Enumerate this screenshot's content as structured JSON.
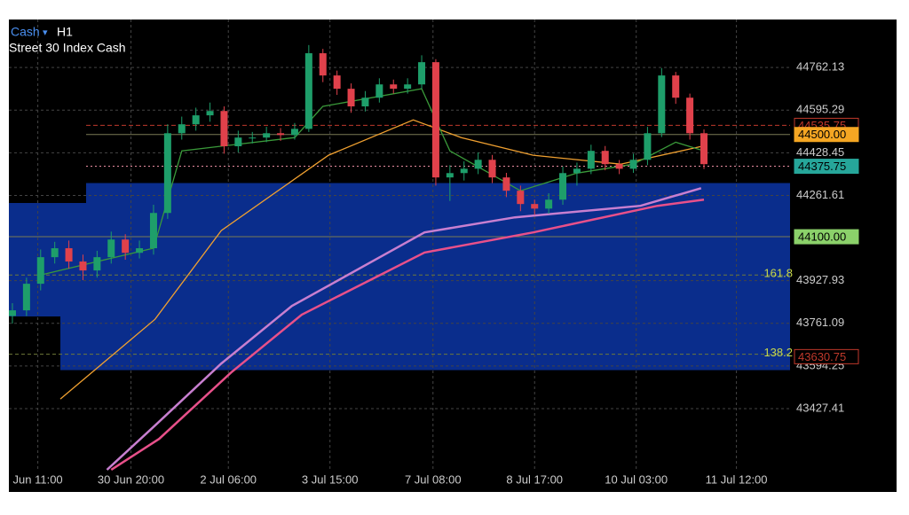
{
  "header": {
    "symbol": "Cash",
    "timeframe": "H1",
    "name": "Street 30 Index Cash"
  },
  "chart_data": {
    "type": "candlestick",
    "up_color": "#1e9e6a",
    "down_color": "#e0414b",
    "open": [
      43790,
      43812,
      43916,
      44020,
      44055,
      44003,
      43968,
      44020,
      44089,
      44037,
      44055,
      44193,
      44505,
      44540,
      44575,
      44592,
      44454,
      44488,
      44488,
      44505,
      44498,
      44522,
      44818,
      44731,
      44679,
      44610,
      44644,
      44696,
      44679,
      44696,
      44783,
      44332,
      44349,
      44366,
      44401,
      44332,
      44280,
      44228,
      44210,
      44245,
      44349,
      44366,
      44436,
      44384,
      44366,
      44401,
      44505,
      44731,
      44644,
      44505
    ],
    "high": [
      43840,
      43940,
      44050,
      44080,
      44085,
      44030,
      44045,
      44120,
      44110,
      44085,
      44225,
      44540,
      44570,
      44605,
      44625,
      44610,
      44515,
      44510,
      44530,
      44525,
      44545,
      44850,
      44835,
      44750,
      44700,
      44670,
      44720,
      44715,
      44720,
      44810,
      44795,
      44380,
      44395,
      44430,
      44420,
      44350,
      44300,
      44245,
      44270,
      44375,
      44390,
      44460,
      44455,
      44400,
      44425,
      44530,
      44760,
      44745,
      44660,
      44520
    ],
    "low": [
      43760,
      43790,
      43890,
      43995,
      43975,
      43930,
      43940,
      43995,
      44010,
      44015,
      44030,
      44170,
      44480,
      44515,
      44550,
      44425,
      44430,
      44465,
      44470,
      44475,
      44480,
      44510,
      44705,
      44655,
      44585,
      44590,
      44625,
      44660,
      44660,
      44680,
      44300,
      44240,
      44320,
      44345,
      44310,
      44255,
      44200,
      44185,
      44190,
      44225,
      44300,
      44345,
      44360,
      44345,
      44350,
      44380,
      44490,
      44620,
      44480,
      44365
    ],
    "close": [
      43812,
      43916,
      44020,
      44055,
      44003,
      43968,
      44020,
      44089,
      44037,
      44055,
      44193,
      44505,
      44540,
      44575,
      44592,
      44454,
      44488,
      44488,
      44505,
      44498,
      44522,
      44818,
      44731,
      44679,
      44610,
      44644,
      44696,
      44679,
      44696,
      44783,
      44332,
      44349,
      44366,
      44401,
      44332,
      44280,
      44228,
      44210,
      44245,
      44349,
      44366,
      44436,
      44384,
      44366,
      44401,
      44505,
      44731,
      44644,
      44505,
      44384
    ],
    "overlays": [
      {
        "color": "#f0a030",
        "x": [
          3.4,
          10.1,
          14.8,
          22.4,
          28.4,
          31.8,
          36.9,
          43.1,
          48.8
        ],
        "values": [
          43465,
          43777,
          44124,
          44419,
          44557,
          44488,
          44419,
          44384,
          44453
        ]
      },
      {
        "color": "#c87fd0",
        "x": [
          6.7,
          10.1,
          14.8,
          19.8,
          29.2,
          35.6,
          44.5,
          48.8
        ],
        "values": [
          43188,
          43361,
          43604,
          43829,
          44117,
          44176,
          44221,
          44290
        ]
      },
      {
        "color": "#e8508a",
        "x": [
          7.0,
          10.4,
          15.5,
          20.5,
          29.2,
          36.9,
          45.7,
          49.0
        ],
        "values": [
          43188,
          43309,
          43569,
          43795,
          44038,
          44117,
          44221,
          44245
        ]
      },
      {
        "color": "#3a9a3a",
        "x": [
          2,
          10,
          12,
          20,
          22,
          29,
          31,
          36,
          40,
          44,
          47,
          49
        ],
        "values": [
          43950,
          44055,
          44436,
          44488,
          44610,
          44679,
          44436,
          44280,
          44349,
          44384,
          44470,
          44436
        ]
      }
    ],
    "zone": {
      "top": 44310,
      "bottom": 43578,
      "color": "#0a2d8c"
    },
    "levels": [
      {
        "value": 44535.75,
        "color": "#c0392b",
        "style": "dashed",
        "tag": "outline"
      },
      {
        "value": 44500,
        "label": "44500.00",
        "color": "#f5a623",
        "style": "solid",
        "tag": "fill"
      },
      {
        "value": 44375.75,
        "color": "#26a69a",
        "style": "dotted",
        "tag": "fill"
      },
      {
        "value": 44100,
        "label": "44100.00",
        "color": "#8bd16a",
        "style": "solid",
        "tag": "fill"
      },
      {
        "value": 43630.75,
        "color": "#c0392b",
        "style": "none",
        "tag": "outline"
      }
    ],
    "fib_levels": [
      {
        "value": 43950,
        "label": "161.8"
      },
      {
        "value": 43640,
        "label": "138.2"
      }
    ],
    "fib_color": "#c8d84a",
    "xlim": [
      -0.25,
      55.1
    ],
    "xticks": [
      {
        "value": 1.8,
        "label": "Jun 11:00"
      },
      {
        "value": 8.4,
        "label": "30 Jun 20:00"
      },
      {
        "value": 15.3,
        "label": "2 Jul 06:00"
      },
      {
        "value": 22.5,
        "label": "3 Jul 15:00"
      },
      {
        "value": 29.8,
        "label": "7 Jul 08:00"
      },
      {
        "value": 37.0,
        "label": "8 Jul 17:00"
      },
      {
        "value": 44.2,
        "label": "10 Jul 03:00"
      },
      {
        "value": 51.3,
        "label": "11 Jul 12:00"
      }
    ],
    "ylim": [
      43188,
      44950
    ],
    "yticks": [
      44762.13,
      44595.29,
      44428.45,
      44261.61,
      43927.93,
      43761.09,
      43594.25,
      43427.41
    ],
    "grid": true
  }
}
